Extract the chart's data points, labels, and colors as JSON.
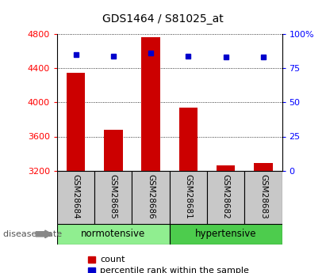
{
  "title": "GDS1464 / S81025_at",
  "samples": [
    "GSM28684",
    "GSM28685",
    "GSM28686",
    "GSM28681",
    "GSM28682",
    "GSM28683"
  ],
  "counts": [
    4350,
    3680,
    4760,
    3940,
    3260,
    3290
  ],
  "percentile_ranks": [
    85,
    84,
    86,
    84,
    83,
    83
  ],
  "y_min": 3200,
  "y_max": 4800,
  "y_ticks": [
    3200,
    3600,
    4000,
    4400,
    4800
  ],
  "right_y_ticks": [
    0,
    25,
    50,
    75,
    100
  ],
  "right_y_tick_labels": [
    "0",
    "25",
    "50",
    "75",
    "100%"
  ],
  "groups": [
    {
      "label": "normotensive",
      "start": 0,
      "end": 3,
      "color": "#90ee90"
    },
    {
      "label": "hypertensive",
      "start": 3,
      "end": 6,
      "color": "#4dcc4d"
    }
  ],
  "bar_color": "#cc0000",
  "dot_color": "#0000cc",
  "bar_width": 0.5,
  "group_label": "disease state",
  "legend_count": "count",
  "legend_pct": "percentile rank within the sample",
  "tick_gray_bg": "#c8c8c8",
  "group_label_color": "#555555",
  "title_fontsize": 10,
  "axis_label_fontsize": 8,
  "legend_fontsize": 8
}
